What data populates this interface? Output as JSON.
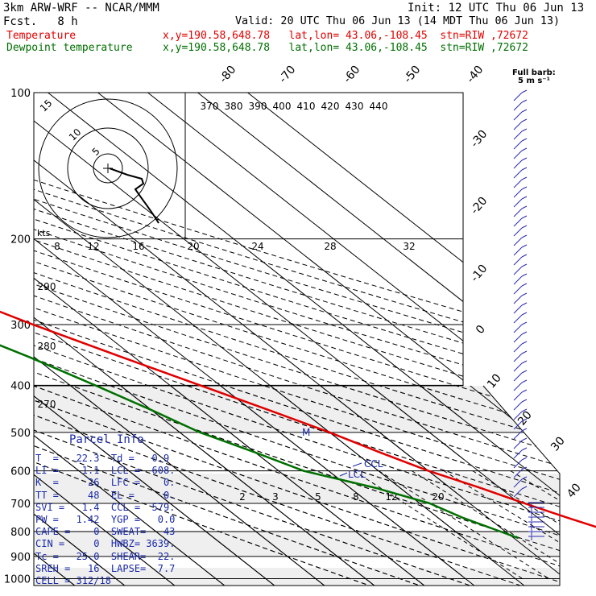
{
  "header": {
    "model": "3km ARW-WRF -- NCAR/MMM",
    "init": "Init: 12 UTC Thu 06 Jun 13",
    "fcst": "Fcst.   8 h",
    "valid": "Valid: 20 UTC Thu 06 Jun 13 (14 MDT Thu 06 Jun 13)"
  },
  "legend": [
    {
      "name": "Temperature",
      "loc": "x,y=190.58,648.78   lat,lon= 43.06,-108.45  stn=RIW ,72672",
      "color": "#e00000"
    },
    {
      "name": "Dewpoint temperature",
      "loc": "x,y=190.58,648.78   lat,lon= 43.06,-108.45  stn=RIW ,72672",
      "color": "#007000"
    }
  ],
  "chart_data": {
    "type": "line",
    "chart_kind": "skew-T log-P sounding",
    "y_axis": {
      "quantity": "pressure",
      "ticks": [
        "100",
        "200",
        "300",
        "400",
        "500",
        "600",
        "700",
        "800",
        "900",
        "1000"
      ],
      "scale": "log"
    },
    "isotherm_labels": [
      "-80",
      "-70",
      "-60",
      "-50",
      "-40",
      "-30",
      "-20",
      "-10",
      "0",
      "10",
      "20",
      "30",
      "40"
    ],
    "theta_e_labels": [
      "370",
      "380",
      "390",
      "400",
      "410",
      "420",
      "430",
      "440"
    ],
    "theta_labels": [
      "290",
      "280",
      "270"
    ],
    "mixing_ratio_labels": [
      "2",
      "3",
      "5",
      "8",
      "12",
      "20"
    ],
    "series": [
      {
        "name": "Temperature",
        "color": "#e00000",
        "points": [
          [
            100,
            -59.5
          ],
          [
            150,
            -58
          ],
          [
            180,
            -59
          ],
          [
            200,
            -60
          ],
          [
            250,
            -52
          ],
          [
            300,
            -42
          ],
          [
            350,
            -32.5
          ],
          [
            400,
            -24
          ],
          [
            450,
            -16.5
          ],
          [
            500,
            -10
          ],
          [
            550,
            -5
          ],
          [
            600,
            0
          ],
          [
            650,
            6
          ],
          [
            700,
            11
          ],
          [
            750,
            16
          ],
          [
            800,
            21
          ],
          [
            825,
            22.3
          ]
        ]
      },
      {
        "name": "Dewpoint temperature",
        "color": "#007000",
        "points": [
          [
            100,
            -75.5
          ],
          [
            150,
            -66
          ],
          [
            180,
            -69
          ],
          [
            200,
            -71.5
          ],
          [
            250,
            -67
          ],
          [
            300,
            -59
          ],
          [
            350,
            -51
          ],
          [
            400,
            -45
          ],
          [
            450,
            -40
          ],
          [
            500,
            -36
          ],
          [
            550,
            -30
          ],
          [
            600,
            -25
          ],
          [
            650,
            -15
          ],
          [
            700,
            -8
          ],
          [
            750,
            -5
          ],
          [
            800,
            -1
          ],
          [
            825,
            0.9
          ]
        ]
      }
    ],
    "markers": [
      {
        "label": "M",
        "p": 520
      },
      {
        "label": "CCL",
        "p": 579
      },
      {
        "label": "LCL",
        "p": 608
      }
    ]
  },
  "hodograph": {
    "units": "kts",
    "ring_labels": [
      "5",
      "10",
      "15"
    ],
    "speed_ticks": [
      "8",
      "12",
      "16",
      "20",
      "24",
      "28",
      "32"
    ]
  },
  "wind_barbs": {
    "title": "Full barb:",
    "unit": "5 m s⁻¹"
  },
  "parcel_info": {
    "title": "Parcel Info",
    "rows": [
      "T  =   22.3  Td =   0.9",
      "LI =    1.1  LCL =  608.",
      "K  =     26  LFC =    0.",
      "TT =     48  EL =     0.",
      "SVI =   1.4  CCL =  579.",
      "PW =   1.42  YGP =   0.0",
      "CAPE =    0  SWEAT=   43",
      "CIN =     0  HWBZ= 3639.",
      "Tc =   25.0  SHEAR=  22.",
      "SREH =   16  LAPSE=  7.7",
      "CELL = 312/18"
    ]
  }
}
